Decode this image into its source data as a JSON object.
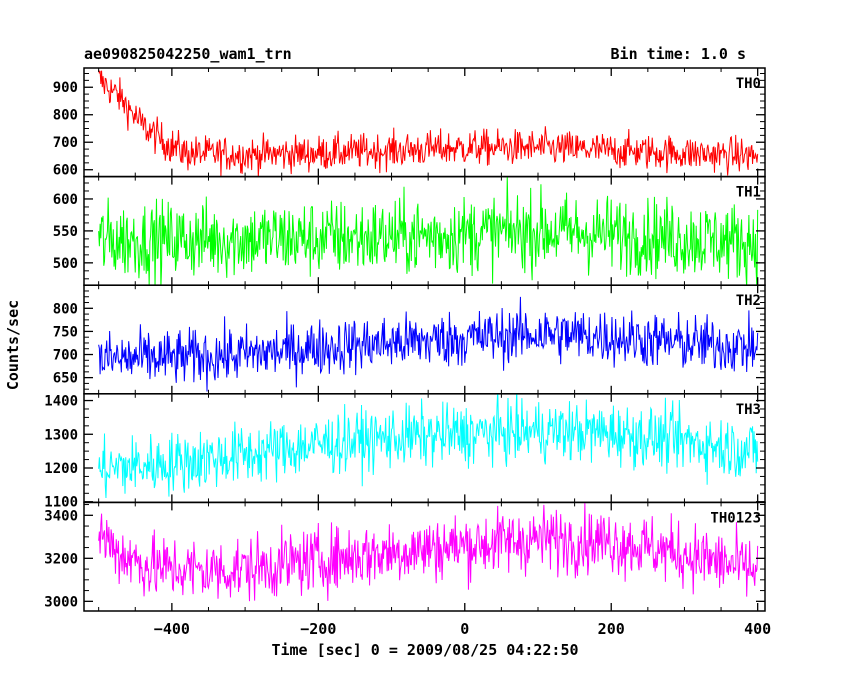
{
  "chart_data": {
    "type": "line",
    "title": "ae090825042250_wam1_trn",
    "subtitle": "Bin time: 1.0 s",
    "xlabel": "Time [sec] 0 = 2009/08/25 04:22:50",
    "ylabel": "Counts/sec",
    "xlim": [
      -520,
      410
    ],
    "x_ticks": [
      -400,
      -200,
      0,
      200,
      400
    ],
    "x_tick_labels": [
      "−400",
      "−200",
      "0",
      "200",
      "400"
    ],
    "x_data_range": [
      -500,
      400
    ],
    "grid": false,
    "panels": [
      {
        "name": "TH0",
        "color": "#ff0000",
        "ylim": [
          575,
          970
        ],
        "y_ticks": [
          600,
          700,
          800,
          900
        ],
        "noise": 32,
        "trend": [
          [
            -500,
            930
          ],
          [
            -470,
            860
          ],
          [
            -440,
            760
          ],
          [
            -410,
            700
          ],
          [
            -380,
            660
          ],
          [
            -300,
            655
          ],
          [
            -200,
            660
          ],
          [
            -100,
            670
          ],
          [
            0,
            680
          ],
          [
            100,
            680
          ],
          [
            200,
            670
          ],
          [
            300,
            660
          ],
          [
            400,
            650
          ]
        ]
      },
      {
        "name": "TH1",
        "color": "#00ff00",
        "ylim": [
          465,
          635
        ],
        "y_ticks": [
          500,
          550,
          600
        ],
        "noise": 30,
        "trend": [
          [
            -500,
            535
          ],
          [
            -300,
            537
          ],
          [
            -100,
            540
          ],
          [
            0,
            545
          ],
          [
            100,
            550
          ],
          [
            200,
            545
          ],
          [
            300,
            538
          ],
          [
            400,
            532
          ]
        ]
      },
      {
        "name": "TH2",
        "color": "#0000ff",
        "ylim": [
          615,
          850
        ],
        "y_ticks": [
          650,
          700,
          750,
          800
        ],
        "noise": 30,
        "trend": [
          [
            -500,
            690
          ],
          [
            -400,
            692
          ],
          [
            -300,
            700
          ],
          [
            -200,
            715
          ],
          [
            -100,
            725
          ],
          [
            0,
            735
          ],
          [
            100,
            745
          ],
          [
            200,
            738
          ],
          [
            300,
            725
          ],
          [
            400,
            715
          ]
        ]
      },
      {
        "name": "TH3",
        "color": "#00ffff",
        "ylim": [
          1098,
          1420
        ],
        "y_ticks": [
          1100,
          1200,
          1300,
          1400
        ],
        "noise": 45,
        "trend": [
          [
            -500,
            1195
          ],
          [
            -400,
            1215
          ],
          [
            -300,
            1240
          ],
          [
            -200,
            1270
          ],
          [
            -100,
            1290
          ],
          [
            0,
            1300
          ],
          [
            100,
            1310
          ],
          [
            200,
            1305
          ],
          [
            300,
            1280
          ],
          [
            400,
            1250
          ]
        ]
      },
      {
        "name": "TH0123",
        "color": "#ff00ff",
        "ylim": [
          2955,
          3460
        ],
        "y_ticks": [
          3000,
          3200,
          3400
        ],
        "noise": 75,
        "trend": [
          [
            -500,
            3320
          ],
          [
            -470,
            3220
          ],
          [
            -430,
            3160
          ],
          [
            -350,
            3140
          ],
          [
            -300,
            3150
          ],
          [
            -200,
            3190
          ],
          [
            -100,
            3230
          ],
          [
            0,
            3260
          ],
          [
            100,
            3290
          ],
          [
            200,
            3280
          ],
          [
            300,
            3220
          ],
          [
            400,
            3140
          ]
        ]
      }
    ]
  }
}
